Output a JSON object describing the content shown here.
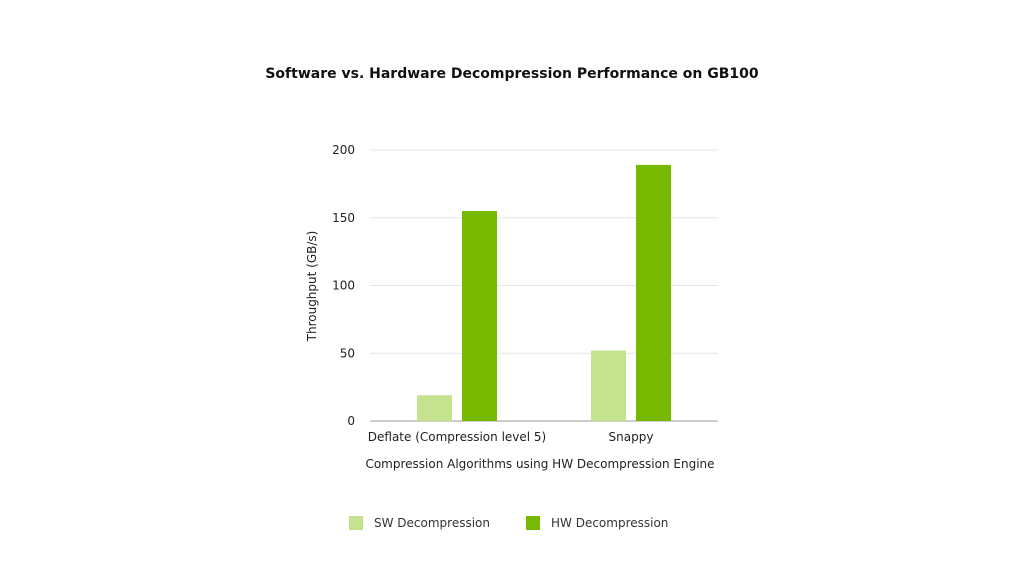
{
  "colors": {
    "sw": "#c5e28e",
    "hw": "#76b900",
    "grid": "#e6e6e6",
    "axis": "#9a9a9a"
  },
  "chart_data": {
    "type": "bar",
    "title": "Software vs. Hardware Decompression Performance on GB100",
    "xlabel": "Compression Algorithms using HW Decompression Engine",
    "ylabel": "Throughput (GB/s)",
    "ylim": [
      0,
      200
    ],
    "yticks": [
      0,
      50,
      100,
      150,
      200
    ],
    "grid": true,
    "legend_position": "bottom",
    "categories": [
      "Deflate (Compression level 5)",
      "Snappy"
    ],
    "series": [
      {
        "name": "SW Decompression",
        "values": [
          19,
          52
        ]
      },
      {
        "name": "HW Decompression",
        "values": [
          155,
          189
        ]
      }
    ]
  }
}
